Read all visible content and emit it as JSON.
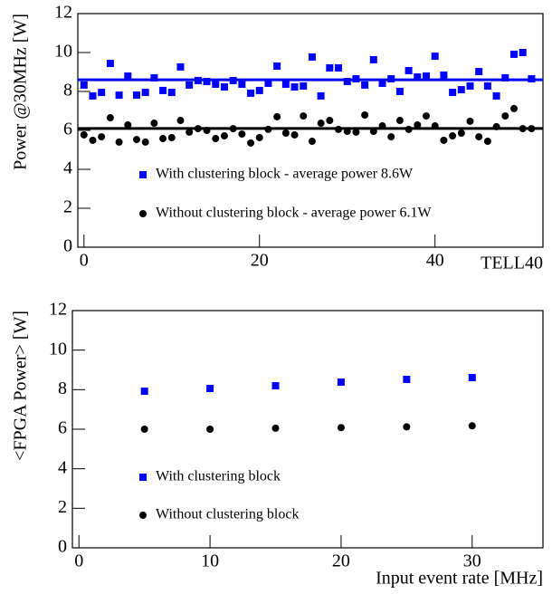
{
  "chart_data": [
    {
      "type": "scatter",
      "x_label": "TELL40",
      "y_label": "Power @30MHz [W]",
      "xlim": [
        -0.7,
        52.3
      ],
      "ylim": [
        0,
        12
      ],
      "xticks": [
        0,
        20,
        40
      ],
      "yticks": [
        0,
        2,
        4,
        6,
        8,
        10,
        12
      ],
      "x": [
        0,
        1,
        2,
        3,
        4,
        5,
        6,
        7,
        8,
        9,
        10,
        11,
        12,
        13,
        14,
        15,
        16,
        17,
        18,
        19,
        20,
        21,
        22,
        23,
        24,
        25,
        26,
        27,
        28,
        29,
        30,
        31,
        32,
        33,
        34,
        35,
        36,
        37,
        38,
        39,
        40,
        41,
        42,
        43,
        44,
        45,
        46,
        47,
        48,
        49,
        50,
        51
      ],
      "series": [
        {
          "name": "With clustering block - average power 8.6W",
          "color": "#0000ff",
          "marker": "square",
          "average": 8.6,
          "values": [
            8.33,
            7.77,
            7.95,
            9.44,
            7.81,
            8.79,
            7.81,
            7.95,
            8.7,
            8.05,
            7.95,
            9.26,
            8.33,
            8.56,
            8.51,
            8.37,
            8.23,
            8.56,
            8.37,
            7.91,
            8.05,
            8.42,
            9.3,
            8.37,
            8.23,
            8.28,
            9.77,
            7.77,
            9.21,
            9.21,
            8.51,
            8.65,
            8.33,
            9.63,
            8.42,
            8.65,
            8.0,
            9.07,
            8.74,
            8.79,
            9.81,
            8.84,
            7.95,
            8.09,
            8.28,
            9.02,
            8.28,
            7.77,
            8.7,
            9.91,
            10.0,
            8.65
          ]
        },
        {
          "name": "Without clustering block - average power 6.1W",
          "color": "#000000",
          "marker": "circle",
          "average": 6.1,
          "values": [
            5.77,
            5.49,
            5.67,
            6.65,
            5.4,
            6.28,
            5.53,
            5.4,
            6.37,
            5.58,
            5.63,
            6.51,
            5.91,
            6.09,
            6.0,
            5.58,
            5.72,
            6.09,
            5.81,
            5.35,
            5.63,
            6.05,
            6.7,
            5.86,
            5.77,
            6.74,
            5.44,
            6.37,
            6.51,
            6.05,
            5.95,
            5.91,
            6.79,
            5.95,
            6.23,
            5.67,
            6.51,
            6.05,
            6.28,
            6.74,
            6.23,
            5.49,
            5.72,
            5.86,
            6.47,
            5.67,
            5.44,
            6.19,
            6.74,
            7.12,
            6.09,
            6.09
          ]
        }
      ]
    },
    {
      "type": "scatter",
      "x_label": "Input event rate [MHz]",
      "y_label": "<FPGA Power> [W]",
      "xlim": [
        -0.5,
        35.4
      ],
      "ylim": [
        0,
        12
      ],
      "xticks": [
        0,
        10,
        20,
        30
      ],
      "yticks": [
        0,
        2,
        4,
        6,
        8,
        10,
        12
      ],
      "x": [
        5,
        10,
        15,
        20,
        25,
        30
      ],
      "series": [
        {
          "name": "With clustering block",
          "color": "#0000ff",
          "marker": "square",
          "values": [
            7.92,
            8.06,
            8.2,
            8.38,
            8.52,
            8.61
          ]
        },
        {
          "name": "Without clustering block",
          "color": "#000000",
          "marker": "circle",
          "values": [
            6.0,
            6.0,
            6.05,
            6.08,
            6.12,
            6.17
          ]
        }
      ]
    }
  ]
}
